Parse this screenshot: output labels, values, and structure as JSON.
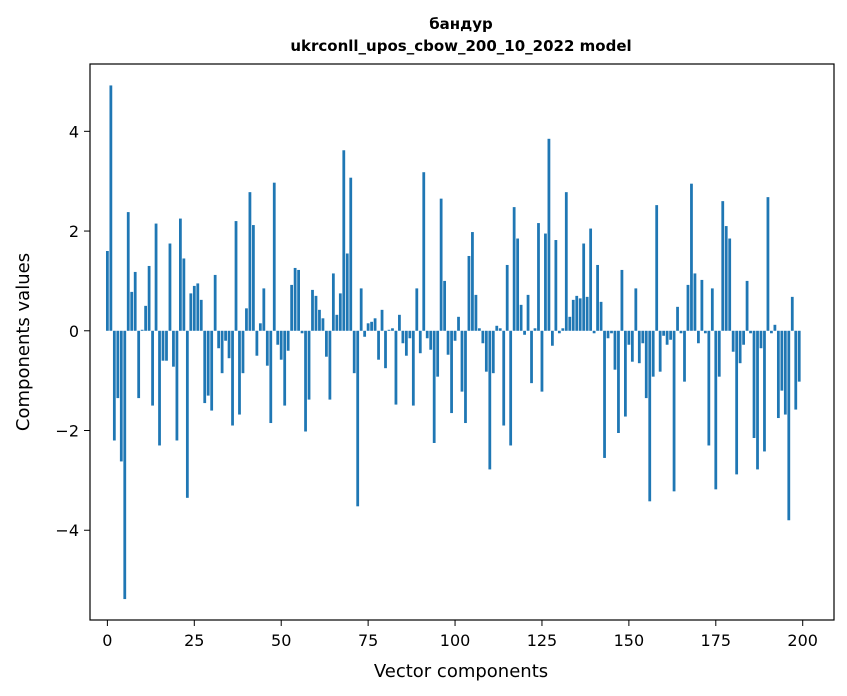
{
  "chart_data": {
    "type": "bar",
    "title": "бандур",
    "subtitle": "ukrconll_upos_cbow_200_10_2022 model",
    "xlabel": "Vector components",
    "ylabel": "Components values",
    "xlim": [
      -5,
      209
    ],
    "ylim": [
      -5.8,
      5.35
    ],
    "xticks": [
      0,
      25,
      50,
      75,
      100,
      125,
      150,
      175,
      200
    ],
    "yticks": [
      -4,
      -2,
      0,
      2,
      4
    ],
    "ytick_labels": [
      "−4",
      "−2",
      "0",
      "2",
      "4"
    ],
    "grid": false,
    "bar_color": "#1f77b4",
    "x": [
      0,
      1,
      2,
      3,
      4,
      5,
      6,
      7,
      8,
      9,
      10,
      11,
      12,
      13,
      14,
      15,
      16,
      17,
      18,
      19,
      20,
      21,
      22,
      23,
      24,
      25,
      26,
      27,
      28,
      29,
      30,
      31,
      32,
      33,
      34,
      35,
      36,
      37,
      38,
      39,
      40,
      41,
      42,
      43,
      44,
      45,
      46,
      47,
      48,
      49,
      50,
      51,
      52,
      53,
      54,
      55,
      56,
      57,
      58,
      59,
      60,
      61,
      62,
      63,
      64,
      65,
      66,
      67,
      68,
      69,
      70,
      71,
      72,
      73,
      74,
      75,
      76,
      77,
      78,
      79,
      80,
      81,
      82,
      83,
      84,
      85,
      86,
      87,
      88,
      89,
      90,
      91,
      92,
      93,
      94,
      95,
      96,
      97,
      98,
      99,
      100,
      101,
      102,
      103,
      104,
      105,
      106,
      107,
      108,
      109,
      110,
      111,
      112,
      113,
      114,
      115,
      116,
      117,
      118,
      119,
      120,
      121,
      122,
      123,
      124,
      125,
      126,
      127,
      128,
      129,
      130,
      131,
      132,
      133,
      134,
      135,
      136,
      137,
      138,
      139,
      140,
      141,
      142,
      143,
      144,
      145,
      146,
      147,
      148,
      149,
      150,
      151,
      152,
      153,
      154,
      155,
      156,
      157,
      158,
      159,
      160,
      161,
      162,
      163,
      164,
      165,
      166,
      167,
      168,
      169,
      170,
      171,
      172,
      173,
      174,
      175,
      176,
      177,
      178,
      179,
      180,
      181,
      182,
      183,
      184,
      185,
      186,
      187,
      188,
      189,
      190,
      191,
      192,
      193,
      194,
      195,
      196,
      197,
      198,
      199
    ],
    "values": [
      1.6,
      4.92,
      -2.2,
      -1.35,
      -2.62,
      -5.38,
      2.38,
      0.78,
      1.18,
      -1.35,
      0.02,
      0.5,
      1.3,
      -1.5,
      2.15,
      -2.3,
      -0.6,
      -0.6,
      1.75,
      -0.72,
      -2.2,
      2.25,
      1.45,
      -3.35,
      0.75,
      0.9,
      0.95,
      0.62,
      -1.45,
      -1.3,
      -1.6,
      1.12,
      -0.35,
      -0.85,
      -0.2,
      -0.55,
      -1.9,
      2.2,
      -1.68,
      -0.85,
      0.45,
      2.78,
      2.12,
      -0.5,
      0.15,
      0.85,
      -0.7,
      -1.85,
      2.97,
      -0.28,
      -0.58,
      -1.5,
      -0.4,
      0.92,
      1.26,
      1.22,
      -0.05,
      -2.02,
      -1.38,
      0.82,
      0.7,
      0.42,
      0.25,
      -0.52,
      -1.38,
      1.15,
      0.32,
      0.75,
      3.62,
      1.55,
      3.07,
      -0.85,
      -3.52,
      0.85,
      -0.12,
      0.15,
      0.18,
      0.25,
      -0.58,
      0.42,
      -0.75,
      0.02,
      0.05,
      -1.48,
      0.32,
      -0.25,
      -0.5,
      -0.15,
      -1.5,
      0.85,
      -0.45,
      3.18,
      -0.15,
      -0.38,
      -2.25,
      -0.92,
      2.65,
      1.0,
      -0.48,
      -1.65,
      -0.2,
      0.28,
      -1.22,
      -1.85,
      1.5,
      1.98,
      0.72,
      0.05,
      -0.25,
      -0.82,
      -2.78,
      -0.85,
      0.1,
      0.05,
      -1.9,
      1.32,
      -2.3,
      2.48,
      1.85,
      0.52,
      -0.08,
      0.72,
      -1.05,
      0.05,
      2.16,
      -1.22,
      1.95,
      3.85,
      -0.3,
      1.82,
      -0.05,
      0.05,
      2.78,
      0.28,
      0.62,
      0.7,
      0.65,
      1.75,
      0.68,
      2.05,
      -0.05,
      1.32,
      0.58,
      -2.55,
      -0.15,
      -0.05,
      -0.78,
      -2.05,
      1.22,
      -1.72,
      -0.28,
      -0.62,
      0.85,
      -0.65,
      -0.25,
      -1.35,
      -3.42,
      -0.92,
      2.52,
      -0.82,
      -0.1,
      -0.28,
      -0.18,
      -3.22,
      0.48,
      -0.05,
      -1.02,
      0.92,
      2.95,
      1.15,
      -0.25,
      1.02,
      -0.05,
      -2.3,
      0.85,
      -3.18,
      -0.92,
      2.6,
      2.1,
      1.85,
      -0.42,
      -2.88,
      -0.65,
      -0.28,
      1.0,
      -0.05,
      -2.15,
      -2.78,
      -0.35,
      -2.42,
      2.68,
      -0.05,
      0.12,
      -1.75,
      -1.2,
      -1.68,
      -3.8,
      0.68,
      -1.58,
      -1.02
    ]
  }
}
